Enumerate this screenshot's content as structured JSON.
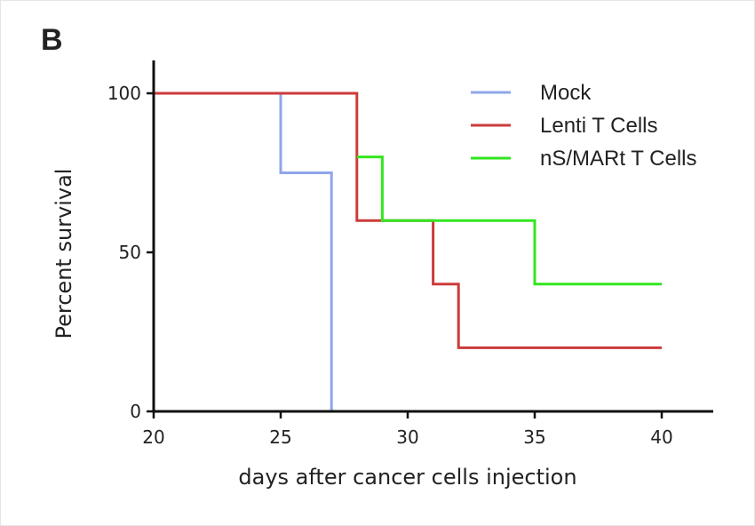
{
  "panel_label": "B",
  "chart_data": {
    "type": "line",
    "step": true,
    "title": "",
    "xlabel": "days after cancer cells injection",
    "ylabel": "Percent survival",
    "xlim": [
      20,
      42
    ],
    "ylim": [
      0,
      110
    ],
    "xticks": [
      20,
      25,
      30,
      35,
      40
    ],
    "yticks": [
      0,
      50,
      100
    ],
    "legend_position": "top-right",
    "series": [
      {
        "name": "Mock",
        "color": "#8fa6ea",
        "x": [
          20,
          25,
          27
        ],
        "y": [
          100,
          75,
          0
        ]
      },
      {
        "name": "Lenti T Cells",
        "color": "#cc3b3b",
        "x": [
          20,
          28,
          31,
          32,
          40
        ],
        "y": [
          100,
          60,
          40,
          20,
          20
        ]
      },
      {
        "name": "nS/MARt T Cells",
        "color": "#33e61f",
        "x": [
          28,
          29,
          35,
          40
        ],
        "y": [
          80,
          60,
          40,
          40
        ]
      }
    ]
  }
}
